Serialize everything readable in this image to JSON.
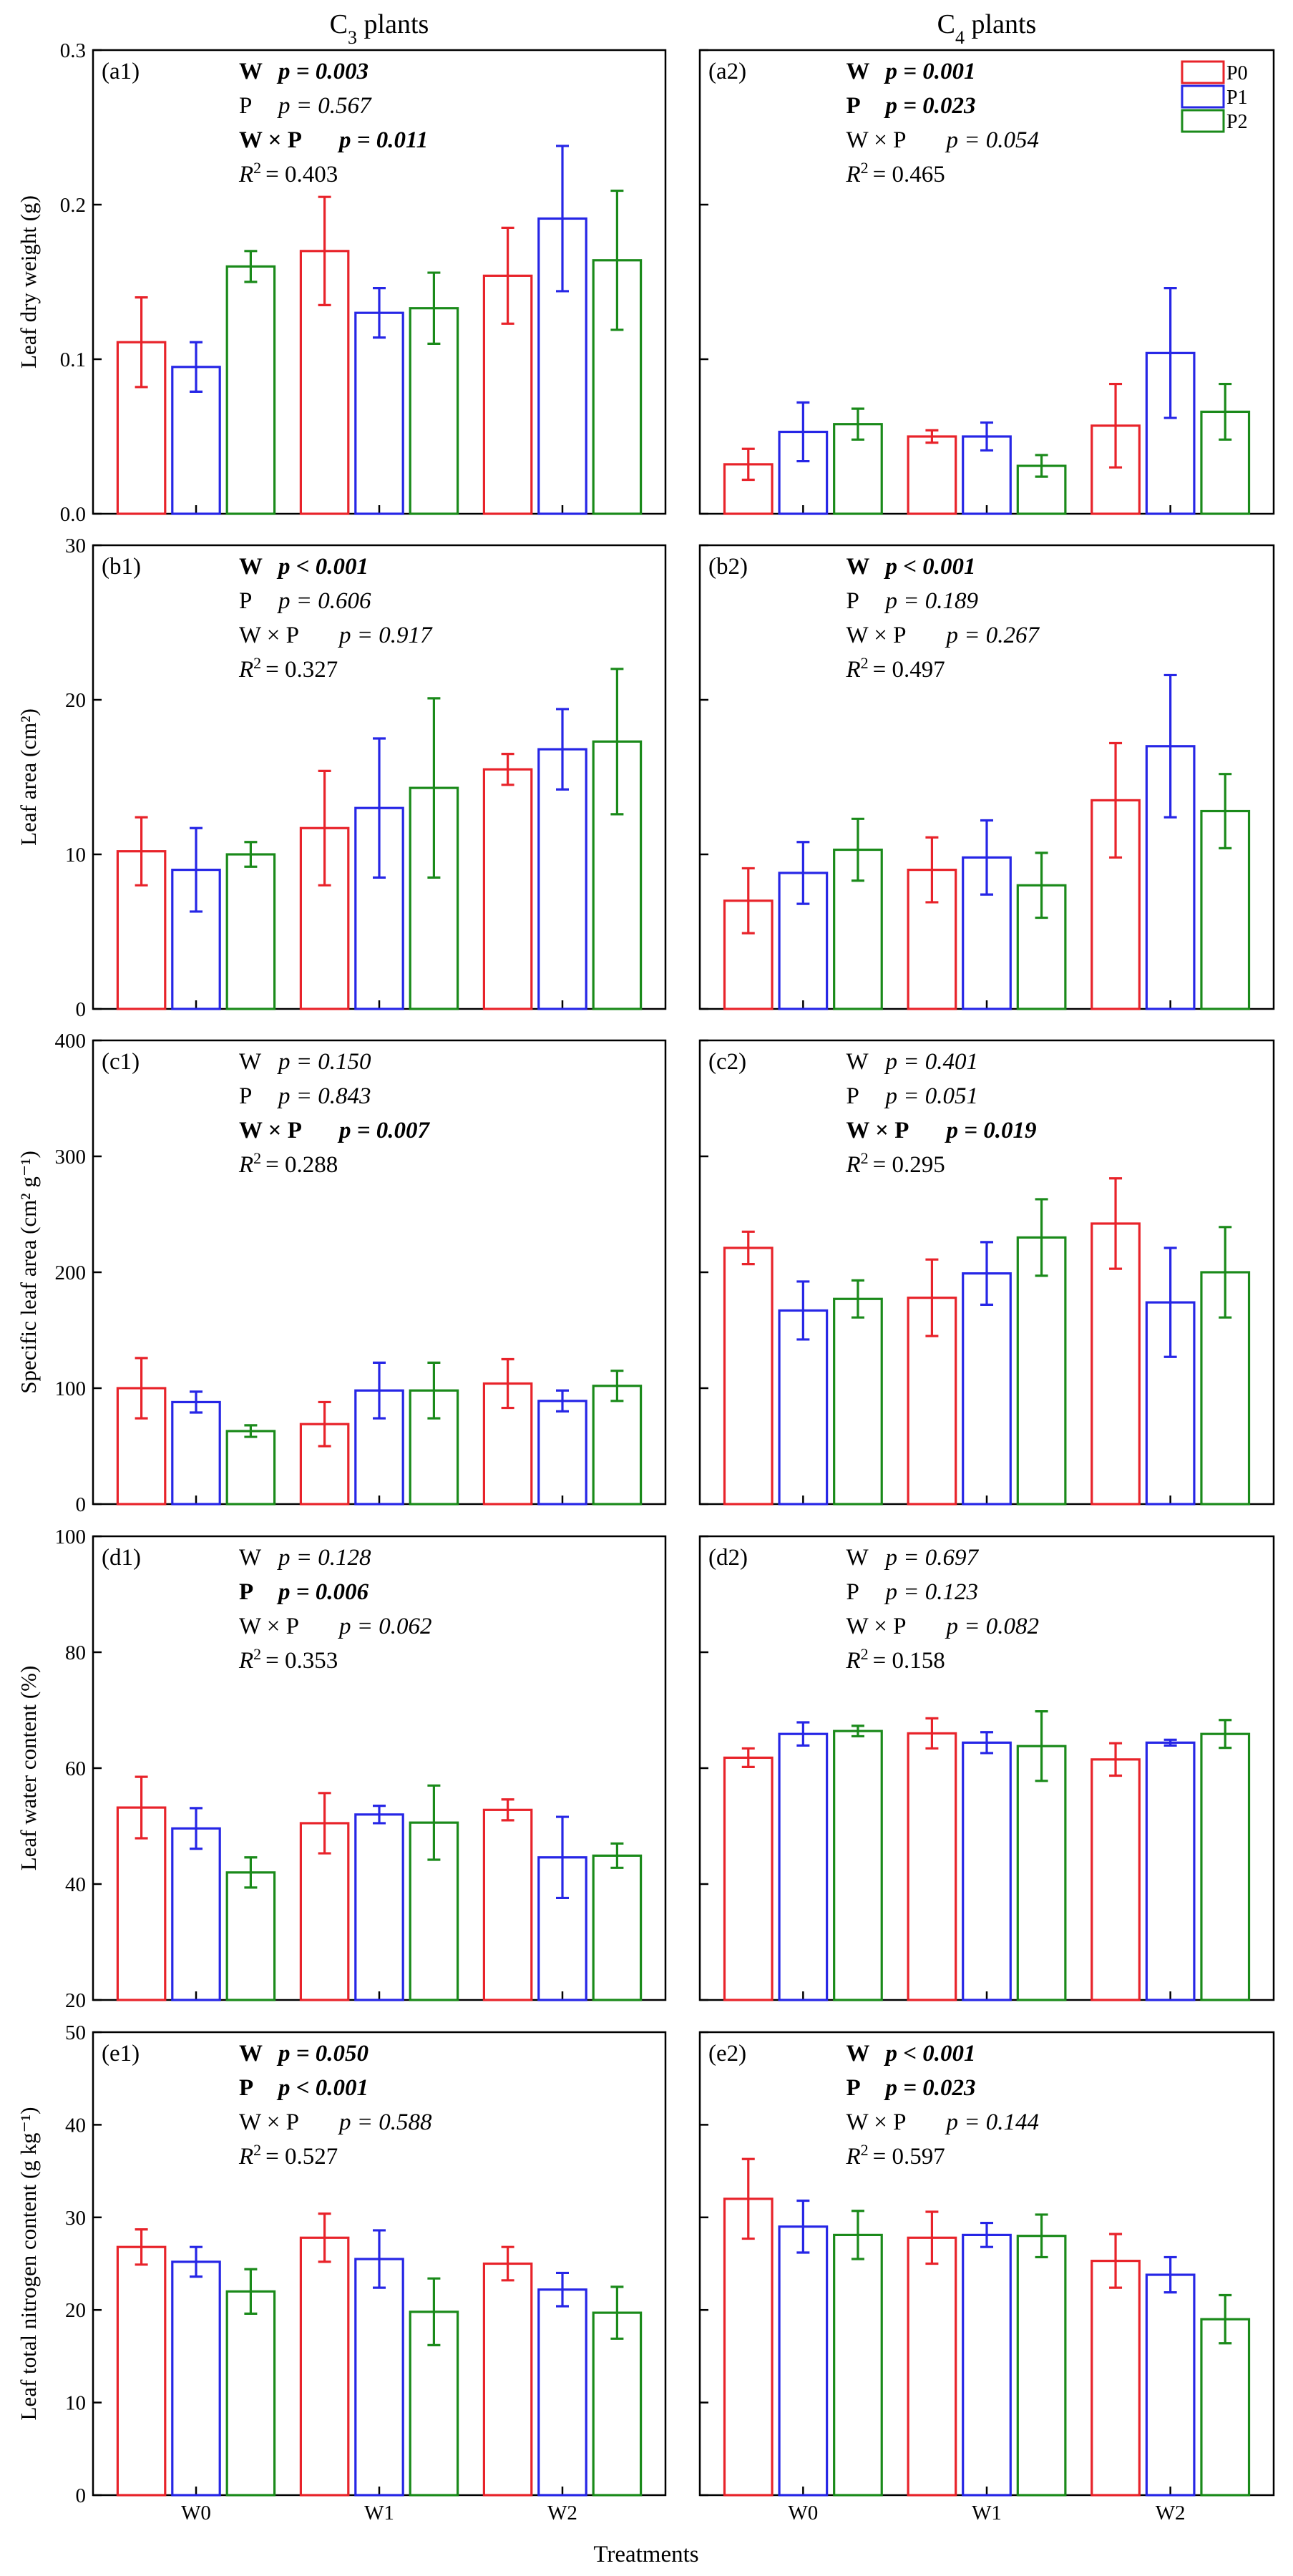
{
  "figure": {
    "col_titles": [
      {
        "main": "C",
        "sub": "3",
        "rest": " plants"
      },
      {
        "main": "C",
        "sub": "4",
        "rest": " plants"
      }
    ],
    "xlabel": "Treatments",
    "categories": [
      "W0",
      "W1",
      "W2"
    ],
    "legend": [
      "P0",
      "P1",
      "P2"
    ],
    "colors": {
      "P0": "#e8232a",
      "P1": "#2626e6",
      "P2": "#1a8a1a"
    }
  },
  "chart_data": [
    {
      "id": "a1",
      "type": "bar",
      "label": "(a1)",
      "ylabel": "Leaf dry weight (g)",
      "ylim": [
        0,
        0.3
      ],
      "yticks": [
        0,
        0.1,
        0.2,
        0.3
      ],
      "ytick_labels": [
        "0.0",
        "0.1",
        "0.2",
        "0.3"
      ],
      "categories": [
        "W0",
        "W1",
        "W2"
      ],
      "series": [
        {
          "name": "P0",
          "values": [
            0.111,
            0.17,
            0.154
          ],
          "err": [
            0.029,
            0.035,
            0.031
          ]
        },
        {
          "name": "P1",
          "values": [
            0.095,
            0.13,
            0.191
          ],
          "err": [
            0.016,
            0.016,
            0.047
          ]
        },
        {
          "name": "P2",
          "values": [
            0.16,
            0.133,
            0.164
          ],
          "err": [
            0.01,
            0.023,
            0.045
          ]
        }
      ],
      "stats": [
        {
          "factor": "W",
          "p": "p = 0.003",
          "bold": true
        },
        {
          "factor": "P",
          "p": "p = 0.567",
          "bold": false
        },
        {
          "factor": "W × P",
          "p": "p = 0.011",
          "bold": true
        }
      ],
      "r2": "= 0.403"
    },
    {
      "id": "a2",
      "type": "bar",
      "label": "(a2)",
      "ylabel": "",
      "ylim": [
        0,
        0.3
      ],
      "yticks": [
        0,
        0.1,
        0.2,
        0.3
      ],
      "ytick_labels": [
        "",
        "",
        "",
        ""
      ],
      "categories": [
        "W0",
        "W1",
        "W2"
      ],
      "series": [
        {
          "name": "P0",
          "values": [
            0.032,
            0.05,
            0.057
          ],
          "err": [
            0.01,
            0.004,
            0.027
          ]
        },
        {
          "name": "P1",
          "values": [
            0.053,
            0.05,
            0.104
          ],
          "err": [
            0.019,
            0.009,
            0.042
          ]
        },
        {
          "name": "P2",
          "values": [
            0.058,
            0.031,
            0.066
          ],
          "err": [
            0.01,
            0.007,
            0.018
          ]
        }
      ],
      "stats": [
        {
          "factor": "W",
          "p": "p = 0.001",
          "bold": true
        },
        {
          "factor": "P",
          "p": "p = 0.023",
          "bold": true
        },
        {
          "factor": "W × P",
          "p": "p = 0.054",
          "bold": false
        }
      ],
      "r2": "= 0.465",
      "legend": true
    },
    {
      "id": "b1",
      "type": "bar",
      "label": "(b1)",
      "ylabel": "Leaf area (cm²)",
      "ylim": [
        0,
        30
      ],
      "yticks": [
        0,
        10,
        20,
        30
      ],
      "ytick_labels": [
        "0",
        "10",
        "20",
        "30"
      ],
      "categories": [
        "W0",
        "W1",
        "W2"
      ],
      "series": [
        {
          "name": "P0",
          "values": [
            10.2,
            11.7,
            15.5
          ],
          "err": [
            2.2,
            3.7,
            1.0
          ]
        },
        {
          "name": "P1",
          "values": [
            9.0,
            13.0,
            16.8
          ],
          "err": [
            2.7,
            4.5,
            2.6
          ]
        },
        {
          "name": "P2",
          "values": [
            10.0,
            14.3,
            17.3
          ],
          "err": [
            0.8,
            5.8,
            4.7
          ]
        }
      ],
      "stats": [
        {
          "factor": "W",
          "p": "p < 0.001",
          "bold": true
        },
        {
          "factor": "P",
          "p": "p = 0.606",
          "bold": false
        },
        {
          "factor": "W × P",
          "p": "p = 0.917",
          "bold": false
        }
      ],
      "r2": "= 0.327"
    },
    {
      "id": "b2",
      "type": "bar",
      "label": "(b2)",
      "ylabel": "",
      "ylim": [
        0,
        30
      ],
      "yticks": [
        0,
        10,
        20,
        30
      ],
      "ytick_labels": [
        "",
        "",
        "",
        ""
      ],
      "categories": [
        "W0",
        "W1",
        "W2"
      ],
      "series": [
        {
          "name": "P0",
          "values": [
            7.0,
            9.0,
            13.5
          ],
          "err": [
            2.1,
            2.1,
            3.7
          ]
        },
        {
          "name": "P1",
          "values": [
            8.8,
            9.8,
            17.0
          ],
          "err": [
            2.0,
            2.4,
            4.6
          ]
        },
        {
          "name": "P2",
          "values": [
            10.3,
            8.0,
            12.8
          ],
          "err": [
            2.0,
            2.1,
            2.4
          ]
        }
      ],
      "stats": [
        {
          "factor": "W",
          "p": "p < 0.001",
          "bold": true
        },
        {
          "factor": "P",
          "p": "p = 0.189",
          "bold": false
        },
        {
          "factor": "W × P",
          "p": "p = 0.267",
          "bold": false
        }
      ],
      "r2": "= 0.497"
    },
    {
      "id": "c1",
      "type": "bar",
      "label": "(c1)",
      "ylabel": "Specific leaf area (cm² g⁻¹)",
      "ylim": [
        0,
        400
      ],
      "yticks": [
        0,
        100,
        200,
        300,
        400
      ],
      "ytick_labels": [
        "0",
        "100",
        "200",
        "300",
        "400"
      ],
      "categories": [
        "W0",
        "W1",
        "W2"
      ],
      "series": [
        {
          "name": "P0",
          "values": [
            100,
            69,
            104
          ],
          "err": [
            26,
            19,
            21
          ]
        },
        {
          "name": "P1",
          "values": [
            88,
            98,
            89
          ],
          "err": [
            9,
            24,
            9
          ]
        },
        {
          "name": "P2",
          "values": [
            63,
            98,
            102
          ],
          "err": [
            5,
            24,
            13
          ]
        }
      ],
      "stats": [
        {
          "factor": "W",
          "p": "p = 0.150",
          "bold": false
        },
        {
          "factor": "P",
          "p": "p = 0.843",
          "bold": false
        },
        {
          "factor": "W × P",
          "p": "p = 0.007",
          "bold": true
        }
      ],
      "r2": "= 0.288"
    },
    {
      "id": "c2",
      "type": "bar",
      "label": "(c2)",
      "ylabel": "",
      "ylim": [
        0,
        400
      ],
      "yticks": [
        0,
        100,
        200,
        300,
        400
      ],
      "ytick_labels": [
        "",
        "",
        "",
        "",
        ""
      ],
      "categories": [
        "W0",
        "W1",
        "W2"
      ],
      "series": [
        {
          "name": "P0",
          "values": [
            221,
            178,
            242
          ],
          "err": [
            14,
            33,
            39
          ]
        },
        {
          "name": "P1",
          "values": [
            167,
            199,
            174
          ],
          "err": [
            25,
            27,
            47
          ]
        },
        {
          "name": "P2",
          "values": [
            177,
            230,
            200
          ],
          "err": [
            16,
            33,
            39
          ]
        }
      ],
      "stats": [
        {
          "factor": "W",
          "p": "p = 0.401",
          "bold": false
        },
        {
          "factor": "P",
          "p": "p = 0.051",
          "bold": false
        },
        {
          "factor": "W × P",
          "p": "p = 0.019",
          "bold": true
        }
      ],
      "r2": "= 0.295"
    },
    {
      "id": "d1",
      "type": "bar",
      "label": "(d1)",
      "ylabel": "Leaf water content (%)",
      "ylim": [
        20,
        100
      ],
      "yticks": [
        20,
        40,
        60,
        80,
        100
      ],
      "ytick_labels": [
        "20",
        "40",
        "60",
        "80",
        "100"
      ],
      "categories": [
        "W0",
        "W1",
        "W2"
      ],
      "series": [
        {
          "name": "P0",
          "values": [
            53.2,
            50.5,
            52.8
          ],
          "err": [
            5.3,
            5.2,
            1.8
          ]
        },
        {
          "name": "P1",
          "values": [
            49.6,
            52.0,
            44.6
          ],
          "err": [
            3.5,
            1.5,
            7.0
          ]
        },
        {
          "name": "P2",
          "values": [
            42.0,
            50.6,
            44.9
          ],
          "err": [
            2.6,
            6.4,
            2.1
          ]
        }
      ],
      "stats": [
        {
          "factor": "W",
          "p": "p = 0.128",
          "bold": false
        },
        {
          "factor": "P",
          "p": "p = 0.006",
          "bold": true
        },
        {
          "factor": "W × P",
          "p": "p = 0.062",
          "bold": false
        }
      ],
      "r2": "= 0.353"
    },
    {
      "id": "d2",
      "type": "bar",
      "label": "(d2)",
      "ylabel": "",
      "ylim": [
        20,
        100
      ],
      "yticks": [
        20,
        40,
        60,
        80,
        100
      ],
      "ytick_labels": [
        "",
        "",
        "",
        "",
        ""
      ],
      "categories": [
        "W0",
        "W1",
        "W2"
      ],
      "series": [
        {
          "name": "P0",
          "values": [
            61.8,
            66.0,
            61.5
          ],
          "err": [
            1.6,
            2.6,
            2.8
          ]
        },
        {
          "name": "P1",
          "values": [
            65.9,
            64.4,
            64.4
          ],
          "err": [
            2.0,
            1.8,
            0.5
          ]
        },
        {
          "name": "P2",
          "values": [
            66.4,
            63.8,
            65.9
          ],
          "err": [
            0.9,
            6.0,
            2.4
          ]
        }
      ],
      "stats": [
        {
          "factor": "W",
          "p": "p = 0.697",
          "bold": false
        },
        {
          "factor": "P",
          "p": "p = 0.123",
          "bold": false
        },
        {
          "factor": "W × P",
          "p": "p = 0.082",
          "bold": false
        }
      ],
      "r2": "= 0.158"
    },
    {
      "id": "e1",
      "type": "bar",
      "label": "(e1)",
      "ylabel": "Leaf total nitrogen content (g kg⁻¹)",
      "ylim": [
        0,
        50
      ],
      "yticks": [
        0,
        10,
        20,
        30,
        40,
        50
      ],
      "ytick_labels": [
        "0",
        "10",
        "20",
        "30",
        "40",
        "50"
      ],
      "categories": [
        "W0",
        "W1",
        "W2"
      ],
      "series": [
        {
          "name": "P0",
          "values": [
            26.8,
            27.8,
            25.0
          ],
          "err": [
            1.9,
            2.6,
            1.8
          ]
        },
        {
          "name": "P1",
          "values": [
            25.2,
            25.5,
            22.2
          ],
          "err": [
            1.6,
            3.1,
            1.8
          ]
        },
        {
          "name": "P2",
          "values": [
            22.0,
            19.8,
            19.7
          ],
          "err": [
            2.4,
            3.6,
            2.8
          ]
        }
      ],
      "stats": [
        {
          "factor": "W",
          "p": "p = 0.050",
          "bold": true
        },
        {
          "factor": "P",
          "p": "p < 0.001",
          "bold": true
        },
        {
          "factor": "W × P",
          "p": "p = 0.588",
          "bold": false
        }
      ],
      "r2": "= 0.527"
    },
    {
      "id": "e2",
      "type": "bar",
      "label": "(e2)",
      "ylabel": "",
      "ylim": [
        0,
        50
      ],
      "yticks": [
        0,
        10,
        20,
        30,
        40,
        50
      ],
      "ytick_labels": [
        "",
        "",
        "",
        "",
        "",
        ""
      ],
      "categories": [
        "W0",
        "W1",
        "W2"
      ],
      "series": [
        {
          "name": "P0",
          "values": [
            32.0,
            27.8,
            25.3
          ],
          "err": [
            4.3,
            2.8,
            2.9
          ]
        },
        {
          "name": "P1",
          "values": [
            29.0,
            28.1,
            23.8
          ],
          "err": [
            2.8,
            1.3,
            1.9
          ]
        },
        {
          "name": "P2",
          "values": [
            28.1,
            28.0,
            19.0
          ],
          "err": [
            2.6,
            2.3,
            2.6
          ]
        }
      ],
      "stats": [
        {
          "factor": "W",
          "p": "p < 0.001",
          "bold": true
        },
        {
          "factor": "P",
          "p": "p = 0.023",
          "bold": true
        },
        {
          "factor": "W × P",
          "p": "p = 0.144",
          "bold": false
        }
      ],
      "r2": "= 0.597"
    }
  ]
}
